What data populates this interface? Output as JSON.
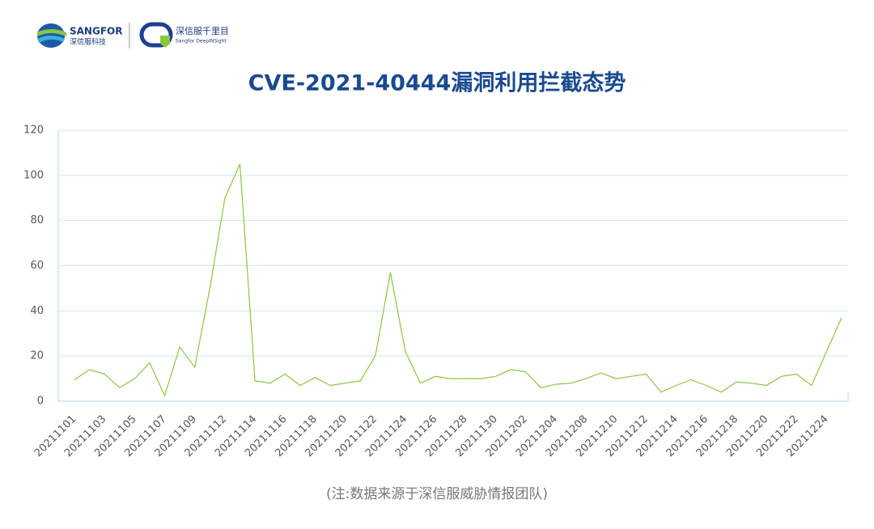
{
  "header": {
    "brand": "SANGFOR",
    "brand_cn": "深信服科技",
    "product_cn": "深信服千里目",
    "product": "Sangfor DeepINSight"
  },
  "chart_data": {
    "type": "line",
    "title": "CVE-2021-40444漏洞利用拦截态势",
    "note": "(注:数据来源于深信服威胁情报团队)",
    "categories": [
      "20211101",
      null,
      "20211103",
      null,
      "20211105",
      null,
      "20211107",
      null,
      "20211109",
      null,
      "20211112",
      null,
      "20211114",
      null,
      "20211116",
      null,
      "20211118",
      null,
      "20211120",
      null,
      "20211122",
      null,
      "20211124",
      null,
      "20211126",
      null,
      "20211128",
      null,
      "20211130",
      null,
      "20211202",
      null,
      "20211204",
      null,
      "20211208",
      null,
      "20211210",
      null,
      "20211212",
      null,
      "20211214",
      null,
      "20211216",
      null,
      "20211218",
      null,
      "20211220",
      null,
      "20211222",
      null,
      "20211224",
      null
    ],
    "values": [
      9.5,
      14,
      12,
      6,
      10,
      17,
      2.5,
      24,
      15,
      50,
      90,
      105,
      9,
      8,
      12,
      7,
      10.5,
      7,
      8,
      9,
      20,
      57,
      22,
      8,
      11,
      10,
      10,
      10,
      11,
      14,
      13,
      6,
      7.5,
      8,
      10,
      12.5,
      10,
      11,
      12,
      4,
      7,
      9.5,
      7,
      4,
      8.5,
      8,
      7,
      11,
      12,
      7,
      22,
      37
    ],
    "color": "#8cc63f",
    "ylim": [
      0,
      120
    ],
    "yticks": [
      0,
      20,
      40,
      60,
      80,
      100,
      120
    ],
    "grid": true
  }
}
